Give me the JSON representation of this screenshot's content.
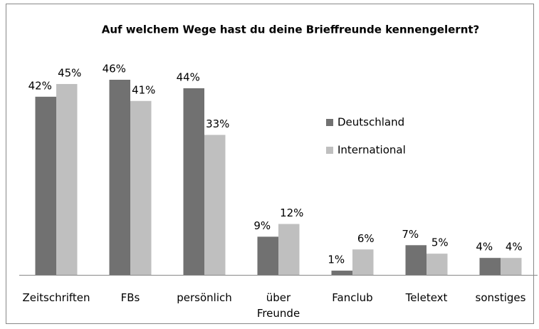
{
  "chart_data": {
    "type": "bar",
    "title": "Auf welchem Wege hast du deine Brieffreunde kennengelernt?",
    "categories": [
      "Zeitschriften",
      "FBs",
      "persönlich",
      "über\nFreunde",
      "Fanclub",
      "Teletext",
      "sonstiges"
    ],
    "series": [
      {
        "name": "Deutschland",
        "color": "#717171",
        "values": [
          42,
          46,
          44,
          9,
          1,
          7,
          4
        ],
        "value_labels": [
          "42%",
          "46%",
          "44%",
          "9%",
          "1%",
          "7%",
          "4%"
        ]
      },
      {
        "name": "International",
        "color": "#bfbfbf",
        "values": [
          45,
          41,
          33,
          12,
          6,
          5,
          4
        ],
        "value_labels": [
          "45%",
          "41%",
          "33%",
          "12%",
          "6%",
          "5%",
          "4%"
        ]
      }
    ]
  }
}
